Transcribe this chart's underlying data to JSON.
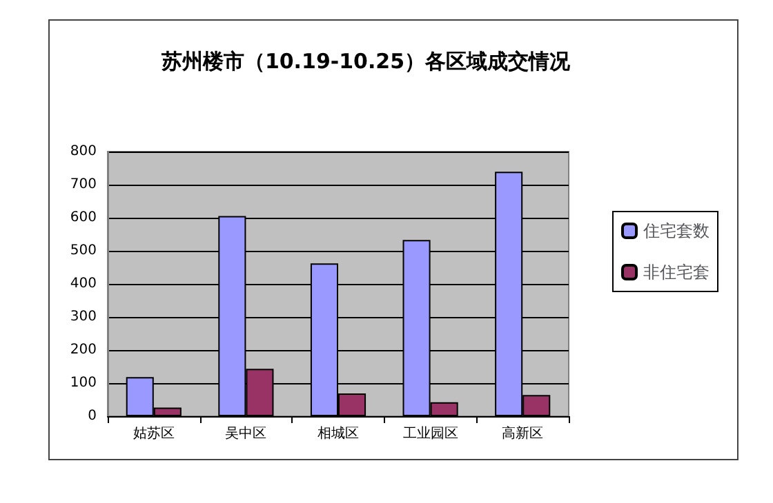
{
  "chart_data": {
    "type": "bar",
    "title": "苏州楼市（10.19-10.25）各区域成交情况",
    "categories": [
      "姑苏区",
      "吴中区",
      "相城区",
      "工业园区",
      "高新区"
    ],
    "series": [
      {
        "name": "住宅套数",
        "color": "#9999ff",
        "values": [
          118,
          605,
          462,
          533,
          739
        ]
      },
      {
        "name": "非住宅套",
        "color": "#993366",
        "values": [
          26,
          143,
          69,
          42,
          64
        ]
      }
    ],
    "ylim": [
      0,
      800
    ],
    "yticks": [
      0,
      100,
      200,
      300,
      400,
      500,
      600,
      700,
      800
    ],
    "grid": "y",
    "legend": "right"
  }
}
